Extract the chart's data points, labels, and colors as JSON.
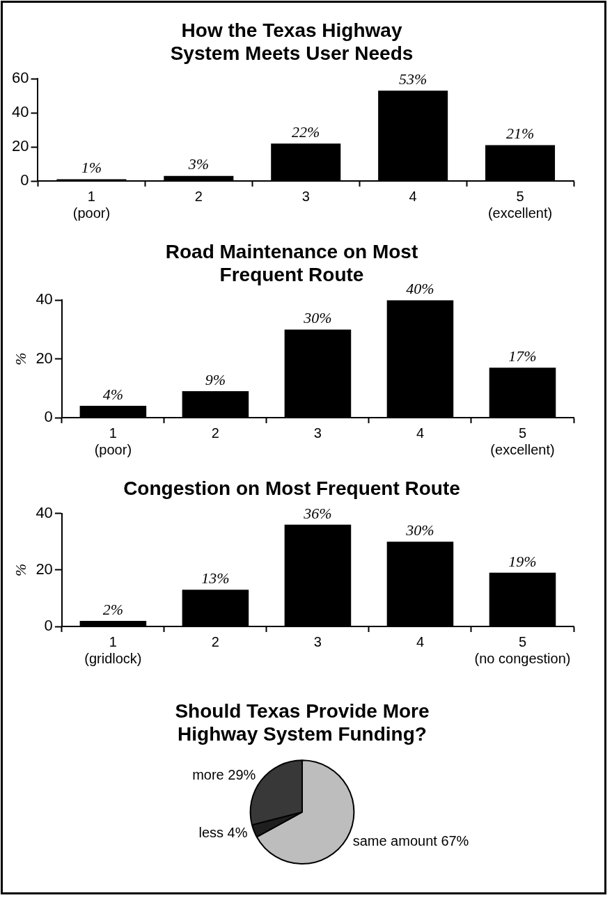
{
  "chart_data": [
    {
      "type": "bar",
      "title": "How the Texas Highway System Meets User Needs",
      "categories": [
        "1\n(poor)",
        "2",
        "3",
        "4",
        "5\n(excellent)"
      ],
      "values": [
        1,
        3,
        22,
        53,
        21
      ],
      "value_labels": [
        "1%",
        "3%",
        "22%",
        "53%",
        "21%"
      ],
      "color": "#000000",
      "ylim": [
        0,
        60
      ],
      "yticks": [
        0,
        20,
        40,
        60
      ],
      "grid": false,
      "legend": false
    },
    {
      "type": "bar",
      "title": "Road Maintenance on Most Frequent Route",
      "ylabel": "%",
      "categories": [
        "1\n(poor)",
        "2",
        "3",
        "4",
        "5\n(excellent)"
      ],
      "values": [
        4,
        9,
        30,
        40,
        17
      ],
      "value_labels": [
        "4%",
        "9%",
        "30%",
        "40%",
        "17%"
      ],
      "color": "#000000",
      "ylim": [
        0,
        40
      ],
      "yticks": [
        0,
        20,
        40
      ],
      "grid": false,
      "legend": false
    },
    {
      "type": "bar",
      "title": "Congestion on Most Frequent Route",
      "ylabel": "%",
      "categories": [
        "1\n(gridlock)",
        "2",
        "3",
        "4",
        "5\n(no congestion)"
      ],
      "values": [
        2,
        13,
        36,
        30,
        19
      ],
      "value_labels": [
        "2%",
        "13%",
        "36%",
        "30%",
        "19%"
      ],
      "color": "#000000",
      "ylim": [
        0,
        40
      ],
      "yticks": [
        0,
        20,
        40
      ],
      "grid": false,
      "legend": false
    },
    {
      "type": "pie",
      "title": "Should Texas Provide More Highway System Funding?",
      "categories": [
        "same amount",
        "less",
        "more"
      ],
      "values": [
        67,
        4,
        29
      ],
      "value_labels": [
        "67%",
        "4%",
        "29%"
      ],
      "colors": [
        "#bdbdbd",
        "#1e1e1e",
        "#383838"
      ],
      "legend": false
    }
  ]
}
